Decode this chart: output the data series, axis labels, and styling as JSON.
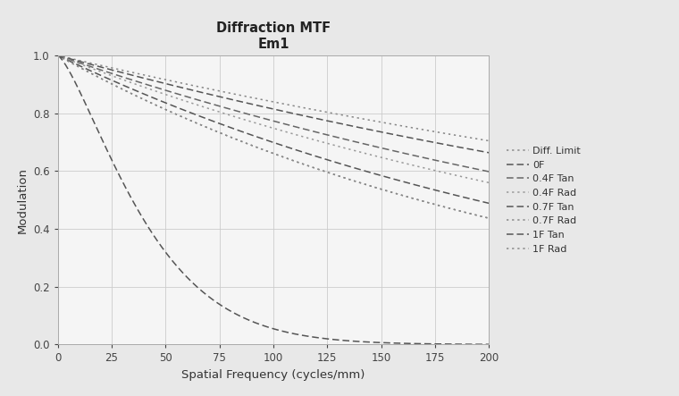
{
  "title_line1": "Diffraction MTF",
  "title_line2": "Em1",
  "xlabel": "Spatial Frequency (cycles/mm)",
  "ylabel": "Modulation",
  "xlim": [
    0,
    200
  ],
  "ylim": [
    0,
    1.0
  ],
  "xticks": [
    0,
    25,
    50,
    75,
    100,
    125,
    150,
    175,
    200
  ],
  "yticks": [
    0,
    0.2,
    0.4,
    0.6,
    0.8,
    1.0
  ],
  "background_color": "#e8e8e8",
  "plot_bg_color": "#f5f5f5",
  "grid_color": "#cccccc",
  "curves": [
    {
      "label": "Diff. Limit",
      "color": "#888888",
      "ls_type": "dotted",
      "lw": 1.1,
      "alpha": 0.00175,
      "beta": 1.0
    },
    {
      "label": "0F",
      "color": "#555555",
      "ls_type": "dashed",
      "lw": 1.1,
      "alpha": 0.00205,
      "beta": 1.0
    },
    {
      "label": "0.4F Tan",
      "color": "#666666",
      "ls_type": "dashed",
      "lw": 1.1,
      "alpha": 0.00257,
      "beta": 1.0
    },
    {
      "label": "0.4F Rad",
      "color": "#999999",
      "ls_type": "dotted",
      "lw": 1.1,
      "alpha": 0.0029,
      "beta": 1.0
    },
    {
      "label": "0.7F Tan",
      "color": "#555555",
      "ls_type": "dashed",
      "lw": 1.1,
      "alpha": 0.00358,
      "beta": 1.0
    },
    {
      "label": "0.7F Rad",
      "color": "#888888",
      "ls_type": "dotted",
      "lw": 1.1,
      "alpha": 0.00414,
      "beta": 1.0
    },
    {
      "label": "1F Tan",
      "color": "#555555",
      "ls_type": "dashed",
      "lw": 1.1,
      "alpha": 0.0058,
      "beta": 1.35
    },
    {
      "label": "1F Rad",
      "color": "#888888",
      "ls_type": "dotted",
      "lw": 1.1,
      "alpha": 0.00414,
      "beta": 1.0
    }
  ]
}
